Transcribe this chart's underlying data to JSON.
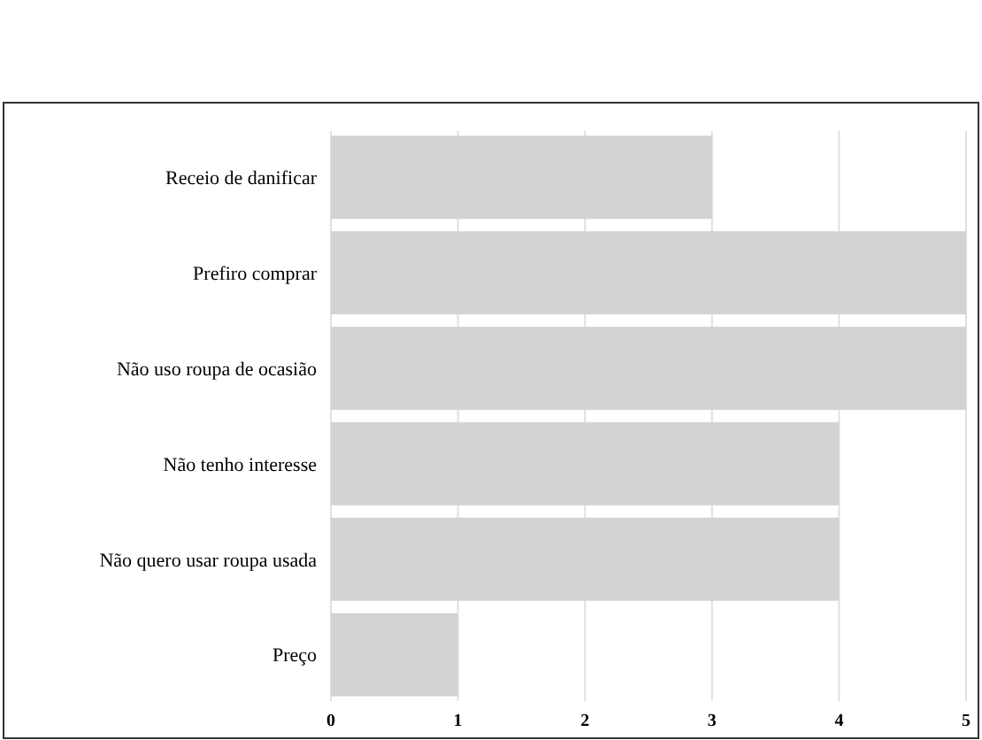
{
  "chart_data": {
    "type": "bar",
    "orientation": "horizontal",
    "categories": [
      "Receio de danificar",
      "Prefiro comprar",
      "Não uso roupa de ocasião",
      "Não tenho interesse",
      "Não quero usar roupa usada",
      "Preço"
    ],
    "values": [
      3,
      5,
      5,
      4,
      4,
      1
    ],
    "color": "#d3d3d3",
    "xlim": [
      0,
      5
    ],
    "xticks": [
      0,
      1,
      2,
      3,
      4,
      5
    ],
    "grid": "x"
  }
}
